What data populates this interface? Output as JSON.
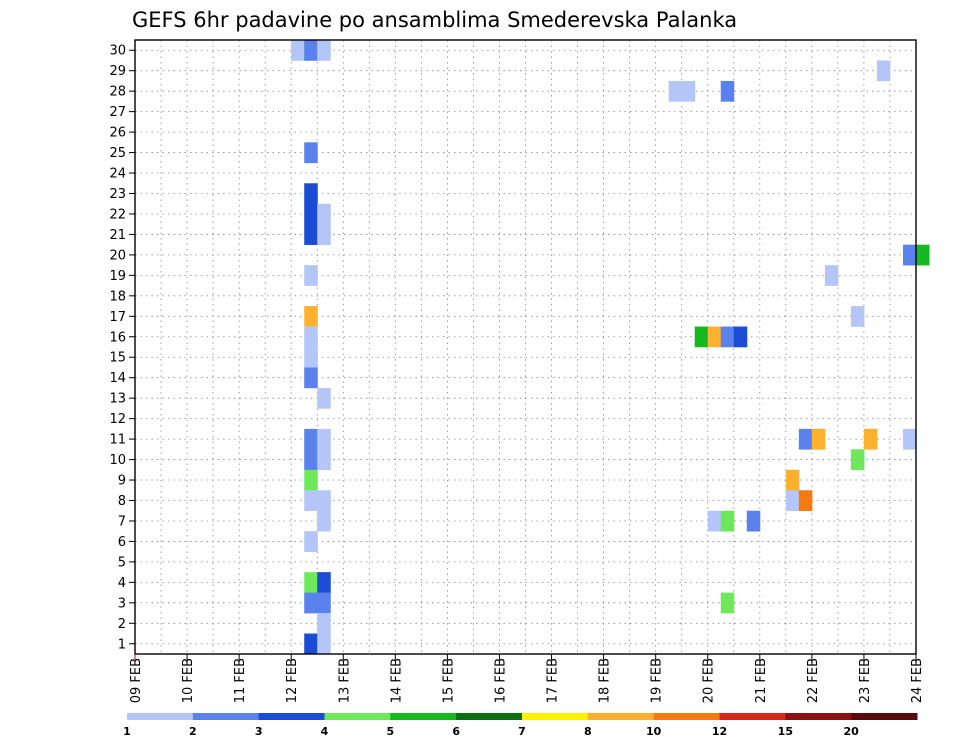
{
  "chart_data": {
    "type": "heatmap",
    "title": "GEFS 6hr padavine po ansamblima Smederevska Palanka",
    "x_tick_labels": [
      "09 FEB",
      "10 FEB",
      "11 FEB",
      "12 FEB",
      "13 FEB",
      "14 FEB",
      "15 FEB",
      "16 FEB",
      "17 FEB",
      "18 FEB",
      "19 FEB",
      "20 FEB",
      "21 FEB",
      "22 FEB",
      "23 FEB",
      "24 FEB"
    ],
    "y_tick_labels": [
      1,
      2,
      3,
      4,
      5,
      6,
      7,
      8,
      9,
      10,
      11,
      12,
      13,
      14,
      15,
      16,
      17,
      18,
      19,
      20,
      21,
      22,
      23,
      24,
      25,
      26,
      27,
      28,
      29,
      30
    ],
    "xlim_days": [
      0,
      15
    ],
    "ylim_members": [
      0.5,
      30.5
    ],
    "x_unit": "days after 09 FEB 00z (6-hour steps)",
    "grid": true,
    "legend": {
      "placement": "bottom",
      "colors": [
        "#b3c6f7",
        "#5b82ec",
        "#1c4bd6",
        "#6ee85a",
        "#15b81e",
        "#0b6e10",
        "#fff200",
        "#ffb02e",
        "#f57a10",
        "#d4281c",
        "#8c1010",
        "#5a0a0a"
      ],
      "labels": [
        "1",
        "2",
        "3",
        "4",
        "5",
        "6",
        "7",
        "8",
        "10",
        "12",
        "15",
        "20"
      ]
    },
    "cells": [
      {
        "t": 3.0,
        "m": 30,
        "c": 1
      },
      {
        "t": 3.25,
        "m": 30,
        "c": 2
      },
      {
        "t": 3.5,
        "m": 30,
        "c": 1
      },
      {
        "t": 14.25,
        "m": 29,
        "c": 1
      },
      {
        "t": 10.25,
        "m": 28,
        "c": 1
      },
      {
        "t": 10.5,
        "m": 28,
        "c": 1
      },
      {
        "t": 11.25,
        "m": 28,
        "c": 2
      },
      {
        "t": 3.25,
        "m": 25,
        "c": 2
      },
      {
        "t": 3.25,
        "m": 23,
        "c": 3
      },
      {
        "t": 3.25,
        "m": 22,
        "c": 3
      },
      {
        "t": 3.5,
        "m": 22,
        "c": 1
      },
      {
        "t": 3.25,
        "m": 21,
        "c": 3
      },
      {
        "t": 3.5,
        "m": 21,
        "c": 1
      },
      {
        "t": 14.75,
        "m": 20,
        "c": 2
      },
      {
        "t": 15.0,
        "m": 20,
        "c": 5
      },
      {
        "t": 3.25,
        "m": 19,
        "c": 1
      },
      {
        "t": 13.25,
        "m": 19,
        "c": 1
      },
      {
        "t": 3.25,
        "m": 17,
        "c": 8
      },
      {
        "t": 13.75,
        "m": 17,
        "c": 1
      },
      {
        "t": 3.25,
        "m": 16,
        "c": 1
      },
      {
        "t": 10.75,
        "m": 16,
        "c": 5
      },
      {
        "t": 11.0,
        "m": 16,
        "c": 8
      },
      {
        "t": 11.25,
        "m": 16,
        "c": 2
      },
      {
        "t": 11.5,
        "m": 16,
        "c": 3
      },
      {
        "t": 3.25,
        "m": 15,
        "c": 1
      },
      {
        "t": 3.25,
        "m": 14,
        "c": 2
      },
      {
        "t": 3.5,
        "m": 13,
        "c": 1
      },
      {
        "t": 3.25,
        "m": 11,
        "c": 2
      },
      {
        "t": 3.5,
        "m": 11,
        "c": 1
      },
      {
        "t": 12.75,
        "m": 11,
        "c": 2
      },
      {
        "t": 13.0,
        "m": 11,
        "c": 8
      },
      {
        "t": 14.0,
        "m": 11,
        "c": 8
      },
      {
        "t": 14.75,
        "m": 11,
        "c": 1
      },
      {
        "t": 3.25,
        "m": 10,
        "c": 2
      },
      {
        "t": 3.5,
        "m": 10,
        "c": 1
      },
      {
        "t": 13.75,
        "m": 10,
        "c": 4
      },
      {
        "t": 3.25,
        "m": 9,
        "c": 4
      },
      {
        "t": 12.5,
        "m": 9,
        "c": 8
      },
      {
        "t": 3.25,
        "m": 8,
        "c": 1
      },
      {
        "t": 3.5,
        "m": 8,
        "c": 1
      },
      {
        "t": 12.5,
        "m": 8,
        "c": 1
      },
      {
        "t": 12.75,
        "m": 8,
        "c": 9
      },
      {
        "t": 3.5,
        "m": 7,
        "c": 1
      },
      {
        "t": 11.0,
        "m": 7,
        "c": 1
      },
      {
        "t": 11.25,
        "m": 7,
        "c": 4
      },
      {
        "t": 11.75,
        "m": 7,
        "c": 2
      },
      {
        "t": 3.25,
        "m": 6,
        "c": 1
      },
      {
        "t": 3.25,
        "m": 4,
        "c": 4
      },
      {
        "t": 3.5,
        "m": 4,
        "c": 3
      },
      {
        "t": 3.25,
        "m": 3,
        "c": 2
      },
      {
        "t": 3.5,
        "m": 3,
        "c": 2
      },
      {
        "t": 11.25,
        "m": 3,
        "c": 4
      },
      {
        "t": 3.5,
        "m": 2,
        "c": 1
      },
      {
        "t": 3.25,
        "m": 1,
        "c": 3
      },
      {
        "t": 3.5,
        "m": 1,
        "c": 1
      }
    ]
  }
}
